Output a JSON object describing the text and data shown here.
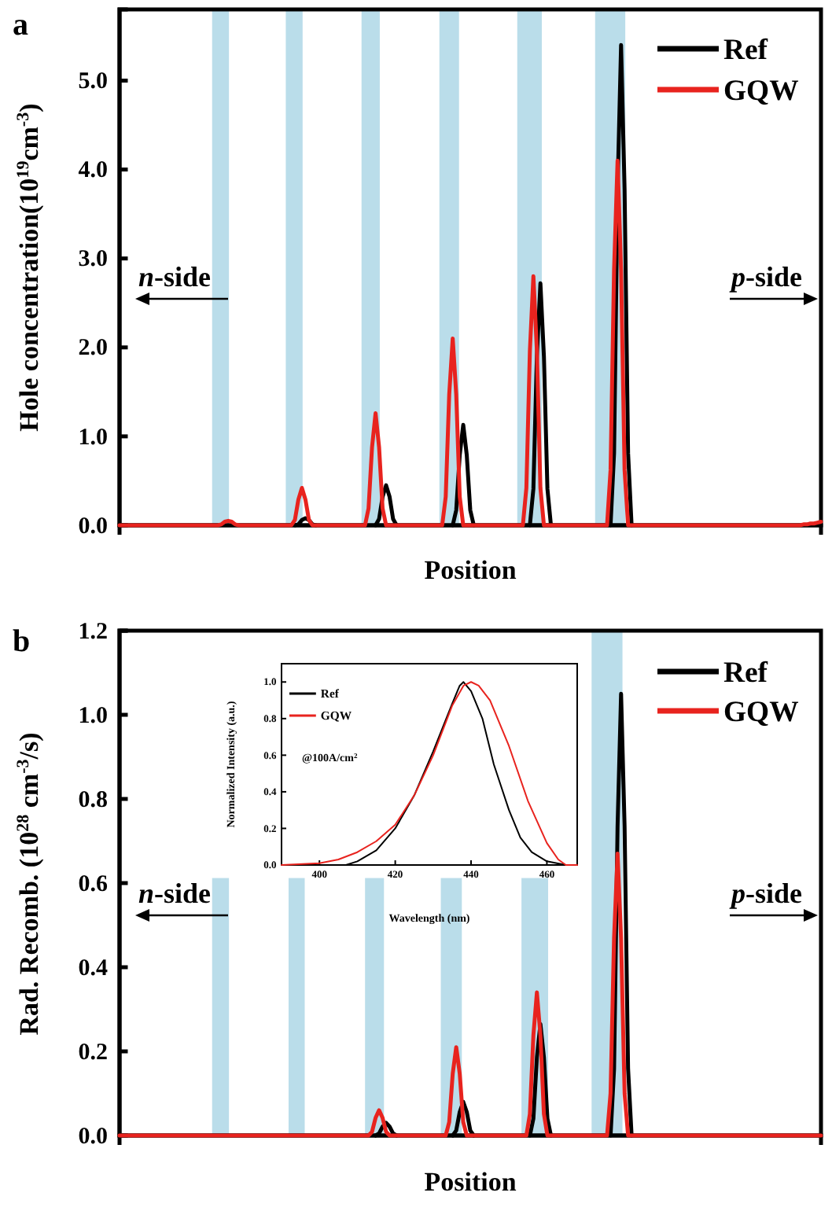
{
  "chart_data": [
    {
      "type": "line",
      "title": "a",
      "xlabel": "Position",
      "ylabel": "Hole concentration(10$^{19}$cm$^{-3}$)",
      "ylim": [
        0,
        5.8
      ],
      "yticks": [
        {
          "value": 0,
          "label": "0.0"
        },
        {
          "value": 1,
          "label": "1.0"
        },
        {
          "value": 2,
          "label": "2.0"
        },
        {
          "value": 3,
          "label": "3.0"
        },
        {
          "value": 4,
          "label": "4.0"
        },
        {
          "value": 5,
          "label": "5.0"
        }
      ],
      "tick_labels": "y",
      "legend": "top right",
      "annotations": [
        "n-side",
        "p-side"
      ],
      "categories": [
        null,
        null,
        null,
        null,
        null,
        null,
        null,
        null,
        null,
        null,
        null,
        null,
        null,
        null,
        null,
        null,
        null,
        null,
        null,
        null,
        null,
        null,
        null,
        null,
        null,
        null,
        null,
        null,
        null,
        null,
        null,
        null,
        null,
        null,
        null,
        null,
        null,
        null,
        null,
        null,
        null,
        null,
        null,
        null,
        null,
        null,
        null,
        null,
        null,
        null,
        null,
        null,
        null,
        null,
        null,
        null,
        null,
        null,
        null,
        null,
        null,
        null,
        null,
        null,
        null,
        null,
        null,
        null,
        null,
        null,
        null,
        null,
        null,
        null,
        null,
        null,
        null,
        null,
        null,
        null,
        null,
        null,
        null,
        null,
        null,
        null,
        null,
        null,
        null,
        null,
        null,
        null,
        null,
        null,
        null,
        null,
        null,
        null,
        null,
        null,
        null,
        null,
        null,
        null,
        null,
        null,
        null,
        null,
        null,
        null,
        null,
        null,
        null,
        null,
        null,
        null,
        null,
        null,
        null,
        null,
        null,
        null,
        null,
        null,
        null,
        null,
        null,
        null,
        null,
        null,
        null,
        null,
        null,
        null,
        null,
        null,
        null,
        null,
        null,
        null,
        null,
        null,
        null,
        null,
        null,
        null,
        null,
        null,
        null,
        null,
        null,
        null,
        null,
        null,
        null,
        null,
        null,
        null,
        null,
        null,
        null,
        null,
        null,
        null,
        null,
        null,
        null,
        null,
        null,
        null,
        null,
        null,
        null,
        null,
        null,
        null,
        null,
        null,
        null,
        null,
        null,
        null,
        null,
        null,
        null,
        null,
        null,
        null,
        null,
        null,
        null,
        null,
        null,
        null,
        null,
        null,
        null,
        null,
        null,
        null,
        null
      ],
      "series": [
        {
          "name": "Ref",
          "color": "#000000",
          "values": [
            null,
            null,
            null,
            null,
            null,
            null,
            null,
            null,
            null,
            null,
            null,
            null,
            null,
            null,
            null,
            null,
            null,
            null,
            null,
            null,
            null,
            null,
            null,
            null,
            null,
            null,
            null,
            null,
            null,
            null,
            null,
            null,
            null,
            null,
            null,
            null,
            null,
            null,
            null,
            null,
            null,
            null,
            null,
            null,
            null,
            null,
            null,
            null,
            null,
            null,
            0,
            0.01,
            0.06,
            0.08,
            0.06,
            0.01,
            0,
            null,
            null,
            null,
            null,
            null,
            null,
            null,
            null,
            null,
            null,
            null,
            null,
            null,
            null,
            null,
            null,
            0,
            0.07,
            0.32,
            0.45,
            0.32,
            0.07,
            0,
            null,
            null,
            null,
            null,
            null,
            null,
            null,
            null,
            null,
            null,
            null,
            null,
            null,
            null,
            null,
            0,
            0.17,
            0.79,
            1.13,
            0.79,
            0.17,
            0,
            null,
            null,
            null,
            null,
            null,
            null,
            null,
            null,
            null,
            null,
            null,
            null,
            null,
            null,
            null,
            0,
            0.41,
            1.9,
            2.72,
            1.9,
            0.41,
            0,
            null,
            null,
            null,
            null,
            null,
            null,
            null,
            null,
            null,
            null,
            null,
            null,
            null,
            null,
            null,
            null,
            0,
            0.81,
            3.78,
            5.4,
            3.78,
            0.81,
            0,
            null,
            null,
            null,
            null,
            null,
            null,
            null,
            null,
            null,
            null,
            null,
            null,
            null,
            null,
            null,
            null,
            null,
            null,
            null,
            null,
            null,
            null,
            null,
            null,
            null,
            null,
            null,
            null,
            null,
            null,
            null,
            null,
            null,
            null,
            null,
            null,
            null,
            null,
            null,
            null,
            null,
            null,
            null,
            null,
            null,
            null,
            null,
            null,
            null,
            null,
            null,
            null,
            null,
            null
          ]
        },
        {
          "name": "GQW",
          "color": "#e8231e",
          "values": [
            0,
            0,
            0,
            0,
            0,
            0,
            0,
            0,
            0,
            0,
            0,
            0,
            0,
            0,
            0,
            0,
            0,
            0,
            0,
            0,
            0,
            0,
            0,
            0,
            0,
            0,
            0,
            0,
            0,
            0.01,
            0.04,
            0.05,
            0.04,
            0.01,
            0,
            0,
            0,
            0,
            0,
            0,
            0,
            0,
            0,
            0,
            0,
            0,
            0,
            0,
            0,
            0,
            0.06,
            0.29,
            0.42,
            0.29,
            0.06,
            0,
            0,
            0,
            0,
            0,
            0,
            0,
            0,
            0,
            0,
            0,
            0,
            0,
            0,
            0,
            0,
            0.19,
            0.88,
            1.26,
            0.88,
            0.19,
            0,
            0,
            0,
            0,
            0,
            0,
            0,
            0,
            0,
            0,
            0,
            0,
            0,
            0,
            0,
            0,
            0,
            0.32,
            1.47,
            2.1,
            1.47,
            0.32,
            0,
            0,
            0,
            0,
            0,
            0,
            0,
            0,
            0,
            0,
            0,
            0,
            0,
            0,
            0,
            0,
            0,
            0,
            0.42,
            1.96,
            2.8,
            1.96,
            0.42,
            0,
            0,
            0,
            0,
            0,
            0,
            0,
            0,
            0,
            0,
            0,
            0,
            0,
            0,
            0,
            0,
            0,
            0,
            0,
            0.62,
            2.87,
            4.1,
            2.87,
            0.62,
            0,
            0,
            0,
            0,
            0,
            0,
            0,
            0,
            0,
            0,
            0,
            0,
            0,
            0,
            0,
            0,
            0,
            0,
            0,
            0,
            0,
            0,
            0,
            0,
            0,
            0,
            0,
            0,
            0,
            0,
            0,
            0,
            0,
            0,
            0,
            0,
            0,
            0,
            0,
            0,
            0,
            0,
            0,
            0,
            0,
            0,
            0,
            0,
            0,
            0,
            0.01,
            0.01,
            0.02,
            0.02,
            0.03,
            0.04
          ]
        }
      ]
    },
    {
      "type": "line",
      "title": "b",
      "xlabel": "Position",
      "ylabel": "Rad. Recomb. (10$^{28}$ cm$^{-3}$/s)",
      "ylim": [
        0,
        1.2
      ],
      "yticks": [
        {
          "value": 0,
          "label": "0.0"
        },
        {
          "value": 0.2,
          "label": "0.2"
        },
        {
          "value": 0.4,
          "label": "0.4"
        },
        {
          "value": 0.6,
          "label": "0.6"
        },
        {
          "value": 0.8,
          "label": "0.8"
        },
        {
          "value": 1,
          "label": "1.0"
        },
        {
          "value": 1.2,
          "label": "1.2"
        }
      ],
      "tick_labels": "y",
      "legend": "top right",
      "annotations": [
        "n-side",
        "p-side"
      ],
      "categories": [
        null,
        null,
        null,
        null,
        null,
        null,
        null,
        null,
        null,
        null,
        null,
        null,
        null,
        null,
        null,
        null,
        null,
        null,
        null,
        null,
        null,
        null,
        null,
        null,
        null,
        null,
        null,
        null,
        null,
        null,
        null,
        null,
        null,
        null,
        null,
        null,
        null,
        null,
        null,
        null,
        null,
        null,
        null,
        null,
        null,
        null,
        null,
        null,
        null,
        null,
        null,
        null,
        null,
        null,
        null,
        null,
        null,
        null,
        null,
        null,
        null,
        null,
        null,
        null,
        null,
        null,
        null,
        null,
        null,
        null,
        null,
        null,
        null,
        null,
        null,
        null,
        null,
        null,
        null,
        null,
        null,
        null,
        null,
        null,
        null,
        null,
        null,
        null,
        null,
        null,
        null,
        null,
        null,
        null,
        null,
        null,
        null,
        null,
        null,
        null,
        null,
        null,
        null,
        null,
        null,
        null,
        null,
        null,
        null,
        null,
        null,
        null,
        null,
        null,
        null,
        null,
        null,
        null,
        null,
        null,
        null,
        null,
        null,
        null,
        null,
        null,
        null,
        null,
        null,
        null,
        null,
        null,
        null,
        null,
        null,
        null,
        null,
        null,
        null,
        null,
        null,
        null,
        null,
        null,
        null,
        null,
        null,
        null,
        null,
        null,
        null,
        null,
        null,
        null,
        null,
        null,
        null,
        null,
        null,
        null,
        null,
        null,
        null,
        null,
        null,
        null,
        null,
        null,
        null,
        null,
        null,
        null,
        null,
        null,
        null,
        null,
        null,
        null,
        null,
        null,
        null,
        null,
        null,
        null,
        null,
        null,
        null,
        null,
        null,
        null,
        null,
        null,
        null,
        null,
        null,
        null,
        null,
        null,
        null,
        null,
        null
      ],
      "series": [
        {
          "name": "Ref",
          "color": "#000000",
          "values": [
            null,
            null,
            null,
            null,
            null,
            null,
            null,
            null,
            null,
            null,
            null,
            null,
            null,
            null,
            null,
            null,
            null,
            null,
            null,
            null,
            null,
            null,
            null,
            null,
            null,
            null,
            null,
            null,
            null,
            null,
            null,
            null,
            null,
            null,
            null,
            null,
            null,
            null,
            null,
            null,
            null,
            null,
            null,
            null,
            null,
            null,
            null,
            null,
            null,
            null,
            null,
            null,
            null,
            null,
            null,
            null,
            null,
            null,
            null,
            null,
            null,
            null,
            null,
            null,
            null,
            null,
            null,
            null,
            null,
            null,
            null,
            null,
            null,
            0,
            0.005,
            0.021,
            0.03,
            0.021,
            0.005,
            0,
            null,
            null,
            null,
            null,
            null,
            null,
            null,
            null,
            null,
            null,
            null,
            null,
            null,
            null,
            null,
            0,
            0.012,
            0.056,
            0.08,
            0.056,
            0.012,
            0,
            null,
            null,
            null,
            null,
            null,
            null,
            null,
            null,
            null,
            null,
            null,
            null,
            null,
            null,
            null,
            0,
            0.04,
            0.186,
            0.265,
            0.186,
            0.04,
            0,
            null,
            null,
            null,
            null,
            null,
            null,
            null,
            null,
            null,
            null,
            null,
            null,
            null,
            null,
            null,
            null,
            0,
            0.158,
            0.735,
            1.05,
            0.735,
            0.158,
            0,
            null,
            null,
            null,
            null,
            null,
            null,
            null,
            null,
            null,
            null,
            null,
            null,
            null,
            null,
            null,
            null,
            null,
            null,
            null,
            null,
            null,
            null,
            null,
            null,
            null,
            null,
            null,
            null,
            null,
            null,
            null,
            null,
            null,
            null,
            null,
            null,
            null,
            null,
            null,
            null,
            null,
            null,
            null,
            null,
            null,
            null,
            null,
            null,
            null,
            null,
            null,
            null,
            null,
            null
          ]
        },
        {
          "name": "GQW",
          "color": "#e8231e",
          "values": [
            0,
            0,
            0,
            0,
            0,
            0,
            0,
            0,
            0,
            0,
            0,
            0,
            0,
            0,
            0,
            0,
            0,
            0,
            0,
            0,
            0,
            0,
            0,
            0,
            0,
            0,
            0,
            0,
            0,
            0,
            0,
            0,
            0,
            0,
            0,
            0,
            0,
            0,
            0,
            0,
            0,
            0,
            0,
            0,
            0,
            0,
            0,
            0,
            0,
            0,
            0,
            0,
            0,
            0,
            0,
            0,
            0,
            0,
            0,
            0,
            0,
            0,
            0,
            0,
            0,
            0,
            0,
            0,
            0,
            0,
            0,
            0,
            0.009,
            0.042,
            0.06,
            0.042,
            0.009,
            0,
            0,
            0,
            0,
            0,
            0,
            0,
            0,
            0,
            0,
            0,
            0,
            0,
            0,
            0,
            0,
            0,
            0.032,
            0.147,
            0.21,
            0.147,
            0.032,
            0,
            0,
            0,
            0,
            0,
            0,
            0,
            0,
            0,
            0,
            0,
            0,
            0,
            0,
            0,
            0,
            0,
            0,
            0.051,
            0.238,
            0.34,
            0.238,
            0.051,
            0,
            0,
            0,
            0,
            0,
            0,
            0,
            0,
            0,
            0,
            0,
            0,
            0,
            0,
            0,
            0,
            0,
            0,
            0.1,
            0.469,
            0.67,
            0.469,
            0.1,
            0,
            0,
            0,
            0,
            0,
            0,
            0,
            0,
            0,
            0,
            0,
            0,
            0,
            0,
            0,
            0,
            0,
            0,
            0,
            0,
            0,
            0,
            0,
            0,
            0,
            0,
            0,
            0,
            0,
            0,
            0,
            0,
            0,
            0,
            0,
            0,
            0,
            0,
            0,
            0,
            0,
            0,
            0,
            0,
            0,
            0,
            0,
            0,
            0,
            0,
            0,
            0,
            0,
            0,
            0,
            0
          ]
        }
      ]
    },
    {
      "type": "line",
      "xlabel": "Wavelength (nm)",
      "ylabel": "Normalized Intensity (a.u.)",
      "xlim": [
        390,
        468
      ],
      "ylim": [
        0,
        1.1
      ],
      "xticks": [
        400,
        420,
        440,
        460
      ],
      "yticks": [
        {
          "value": 0,
          "label": "0.0"
        },
        {
          "value": 0.2,
          "label": "0.2"
        },
        {
          "value": 0.4,
          "label": "0.4"
        },
        {
          "value": 0.6,
          "label": "0.6"
        },
        {
          "value": 0.8,
          "label": "0.8"
        },
        {
          "value": 1,
          "label": "1.0"
        }
      ],
      "legend": "top left",
      "annotations": [
        "@100A/cm$^{2}$"
      ],
      "series": [
        {
          "name": "Ref",
          "color": "#000000",
          "x": [
            390,
            400,
            407,
            410,
            415,
            420,
            425,
            430,
            435,
            437,
            438,
            440,
            443,
            446,
            450,
            453,
            456,
            460,
            465,
            468
          ],
          "values": [
            0,
            0,
            0,
            0.02,
            0.08,
            0.2,
            0.38,
            0.62,
            0.88,
            0.98,
            1.0,
            0.95,
            0.8,
            0.55,
            0.3,
            0.15,
            0.07,
            0.02,
            0,
            0
          ]
        },
        {
          "name": "GQW",
          "color": "#e8231e",
          "x": [
            390,
            400,
            405,
            410,
            415,
            420,
            425,
            430,
            435,
            438,
            440,
            442,
            445,
            450,
            455,
            460,
            463,
            465,
            468
          ],
          "values": [
            0,
            0.01,
            0.03,
            0.07,
            0.13,
            0.22,
            0.38,
            0.6,
            0.87,
            0.98,
            1.0,
            0.98,
            0.9,
            0.65,
            0.35,
            0.12,
            0.03,
            0,
            0
          ]
        }
      ]
    }
  ]
}
